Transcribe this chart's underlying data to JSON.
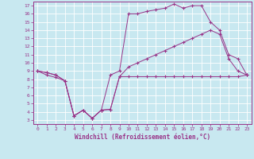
{
  "xlabel": "Windchill (Refroidissement éolien,°C)",
  "bg_color": "#c8e8f0",
  "line_color": "#993388",
  "xlim": [
    -0.5,
    23.5
  ],
  "ylim": [
    2.5,
    17.5
  ],
  "xticks": [
    0,
    1,
    2,
    3,
    4,
    5,
    6,
    7,
    8,
    9,
    10,
    11,
    12,
    13,
    14,
    15,
    16,
    17,
    18,
    19,
    20,
    21,
    22,
    23
  ],
  "yticks": [
    3,
    4,
    5,
    6,
    7,
    8,
    9,
    10,
    11,
    12,
    13,
    14,
    15,
    16,
    17
  ],
  "line_bottom": [
    [
      0,
      9
    ],
    [
      1,
      8.5
    ],
    [
      2,
      8.2
    ],
    [
      3,
      7.8
    ],
    [
      4,
      3.5
    ],
    [
      5,
      4.2
    ],
    [
      6,
      3.2
    ],
    [
      7,
      4.2
    ],
    [
      8,
      4.3
    ],
    [
      9,
      8.3
    ],
    [
      10,
      8.3
    ],
    [
      11,
      8.3
    ],
    [
      12,
      8.3
    ],
    [
      13,
      8.3
    ],
    [
      14,
      8.3
    ],
    [
      15,
      8.3
    ],
    [
      16,
      8.3
    ],
    [
      17,
      8.3
    ],
    [
      18,
      8.3
    ],
    [
      19,
      8.3
    ],
    [
      20,
      8.3
    ],
    [
      21,
      8.3
    ],
    [
      22,
      8.3
    ],
    [
      23,
      8.5
    ]
  ],
  "line_mid": [
    [
      0,
      9
    ],
    [
      1,
      8.8
    ],
    [
      2,
      8.5
    ],
    [
      3,
      7.8
    ],
    [
      4,
      3.5
    ],
    [
      5,
      4.2
    ],
    [
      6,
      3.2
    ],
    [
      7,
      4.2
    ],
    [
      8,
      4.3
    ],
    [
      9,
      8.3
    ],
    [
      10,
      9.5
    ],
    [
      11,
      10.0
    ],
    [
      12,
      10.5
    ],
    [
      13,
      11.0
    ],
    [
      14,
      11.5
    ],
    [
      15,
      12.0
    ],
    [
      16,
      12.5
    ],
    [
      17,
      13.0
    ],
    [
      18,
      13.5
    ],
    [
      19,
      14.0
    ],
    [
      20,
      13.5
    ],
    [
      21,
      10.5
    ],
    [
      22,
      9.0
    ],
    [
      23,
      8.5
    ]
  ],
  "line_top": [
    [
      0,
      9
    ],
    [
      1,
      8.8
    ],
    [
      2,
      8.5
    ],
    [
      3,
      7.8
    ],
    [
      4,
      3.5
    ],
    [
      5,
      4.2
    ],
    [
      6,
      3.2
    ],
    [
      7,
      4.2
    ],
    [
      8,
      8.5
    ],
    [
      9,
      9.0
    ],
    [
      10,
      16.0
    ],
    [
      11,
      16.0
    ],
    [
      12,
      16.3
    ],
    [
      13,
      16.5
    ],
    [
      14,
      16.7
    ],
    [
      15,
      17.2
    ],
    [
      16,
      16.7
    ],
    [
      17,
      17.0
    ],
    [
      18,
      17.0
    ],
    [
      19,
      15.0
    ],
    [
      20,
      14.0
    ],
    [
      21,
      11.0
    ],
    [
      22,
      10.5
    ],
    [
      23,
      8.5
    ]
  ]
}
